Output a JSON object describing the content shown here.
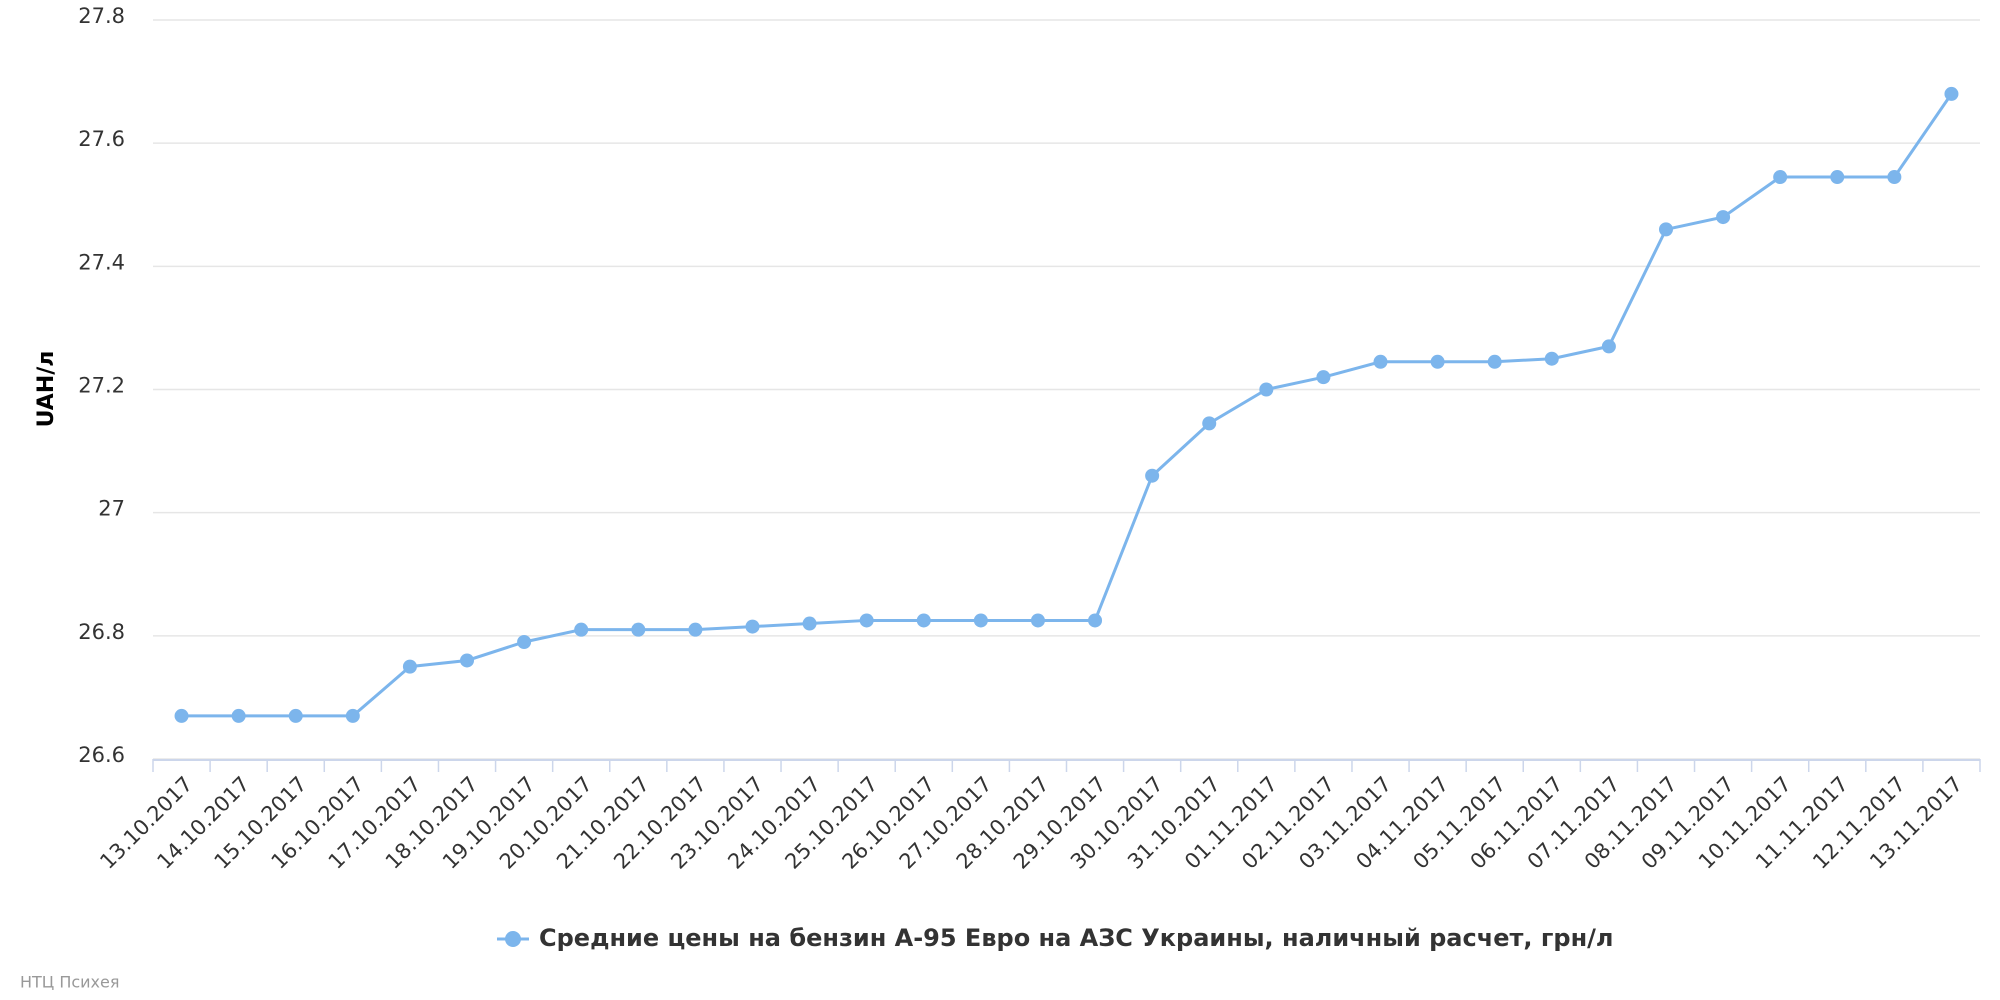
{
  "chart_data": {
    "type": "line",
    "y_label": "UAH/л",
    "credits": "НТЦ Психея",
    "categories": [
      "13.10.2017",
      "14.10.2017",
      "15.10.2017",
      "16.10.2017",
      "17.10.2017",
      "18.10.2017",
      "19.10.2017",
      "20.10.2017",
      "21.10.2017",
      "22.10.2017",
      "23.10.2017",
      "24.10.2017",
      "25.10.2017",
      "26.10.2017",
      "27.10.2017",
      "28.10.2017",
      "29.10.2017",
      "30.10.2017",
      "31.10.2017",
      "01.11.2017",
      "02.11.2017",
      "03.11.2017",
      "04.11.2017",
      "05.11.2017",
      "06.11.2017",
      "07.11.2017",
      "08.11.2017",
      "09.11.2017",
      "10.11.2017",
      "11.11.2017",
      "12.11.2017",
      "13.11.2017"
    ],
    "series": [
      {
        "name": "Средние цены на бензин А-95 Евро на АЗС Украины, наличный расчет, грн/л",
        "color": "#7cb5ec",
        "values": [
          26.67,
          26.67,
          26.67,
          26.67,
          26.75,
          26.76,
          26.79,
          26.81,
          26.81,
          26.81,
          26.815,
          26.82,
          26.825,
          26.825,
          26.825,
          26.825,
          26.825,
          27.06,
          27.145,
          27.2,
          27.22,
          27.245,
          27.245,
          27.245,
          27.25,
          27.27,
          27.46,
          27.48,
          27.545,
          27.545,
          27.545,
          27.68
        ]
      }
    ],
    "ylim": [
      26.6,
      27.8
    ],
    "yticks": [
      26.6,
      26.8,
      27,
      27.2,
      27.4,
      27.6,
      27.8
    ],
    "grid": true
  }
}
